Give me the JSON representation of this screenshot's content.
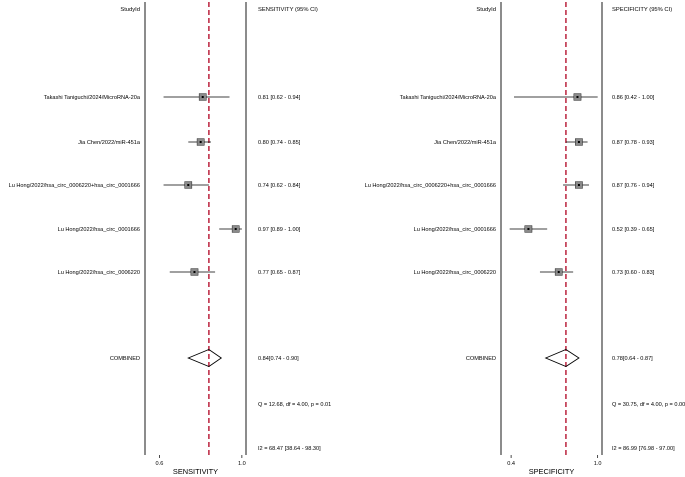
{
  "chart_data": [
    {
      "type": "forest",
      "header_left": "StudyId",
      "header_right": "SENSITIVITY (95% CI)",
      "xlabel": "SENSITIVITY",
      "xlim": [
        0.53,
        1.02
      ],
      "xticks": [
        {
          "value": 0.6,
          "label": "0.6"
        },
        {
          "value": 1.0,
          "label": "1.0"
        }
      ],
      "reference_line": 0.84,
      "studies": [
        {
          "label": "Takashi Taniguchi/2024/MicroRNA-20a",
          "est": 0.81,
          "lo": 0.62,
          "hi": 0.94,
          "ci_text": "0.81 [0.62 - 0.94]"
        },
        {
          "label": "Jia Chen/2022/miR-451a",
          "est": 0.8,
          "lo": 0.74,
          "hi": 0.85,
          "ci_text": "0.80 [0.74 - 0.85]"
        },
        {
          "label": "Lu Hong/2022/hsa_circ_0006220+hsa_circ_0001666",
          "est": 0.74,
          "lo": 0.62,
          "hi": 0.84,
          "ci_text": "0.74 [0.62 - 0.84]"
        },
        {
          "label": "Lu Hong/2022/hsa_circ_0001666",
          "est": 0.97,
          "lo": 0.89,
          "hi": 1.0,
          "ci_text": "0.97 [0.89 - 1.00]"
        },
        {
          "label": "Lu Hong/2022/hsa_circ_0006220",
          "est": 0.77,
          "lo": 0.65,
          "hi": 0.87,
          "ci_text": "0.77 [0.65 - 0.87]"
        }
      ],
      "combined": {
        "label": "COMBINED",
        "est": 0.84,
        "lo": 0.74,
        "hi": 0.9,
        "ci_text": "0.84[0.74 - 0.90]"
      },
      "q_text": "Q = 12.68, df = 4.00, p =  0.01",
      "i2_text": "I2 = 68.47 [38.64 - 98.30]"
    },
    {
      "type": "forest",
      "header_left": "StudyId",
      "header_right": "SPECIFICITY (95% CI)",
      "xlabel": "SPECIFICITY",
      "xlim": [
        0.33,
        1.03
      ],
      "xticks": [
        {
          "value": 0.4,
          "label": "0.4"
        },
        {
          "value": 1.0,
          "label": "1.0"
        }
      ],
      "reference_line": 0.78,
      "studies": [
        {
          "label": "Takashi Taniguchi/2024/MicroRNA-20a",
          "est": 0.86,
          "lo": 0.42,
          "hi": 1.0,
          "ci_text": "0.86 [0.42 - 1.00]"
        },
        {
          "label": "Jia Chen/2022/miR-451a",
          "est": 0.87,
          "lo": 0.78,
          "hi": 0.93,
          "ci_text": "0.87 [0.78 - 0.93]"
        },
        {
          "label": "Lu Hong/2022/hsa_circ_0006220+hsa_circ_0001666",
          "est": 0.87,
          "lo": 0.76,
          "hi": 0.94,
          "ci_text": "0.87 [0.76 - 0.94]"
        },
        {
          "label": "Lu Hong/2022/hsa_circ_0001666",
          "est": 0.52,
          "lo": 0.39,
          "hi": 0.65,
          "ci_text": "0.52 [0.39 - 0.65]"
        },
        {
          "label": "Lu Hong/2022/hsa_circ_0006220",
          "est": 0.73,
          "lo": 0.6,
          "hi": 0.83,
          "ci_text": "0.73 [0.60 - 0.83]"
        }
      ],
      "combined": {
        "label": "COMBINED",
        "est": 0.78,
        "lo": 0.64,
        "hi": 0.87,
        "ci_text": "0.78[0.64 - 0.87]"
      },
      "q_text": "Q = 30.75, df = 4.00, p =  0.00",
      "i2_text": "I2 = 86.99 [76.98 - 97.00]"
    }
  ],
  "colors": {
    "reference_line": "#b5122f",
    "marker_fill": "#8a8a8a",
    "ci_line": "#000000",
    "frame": "#000000"
  }
}
